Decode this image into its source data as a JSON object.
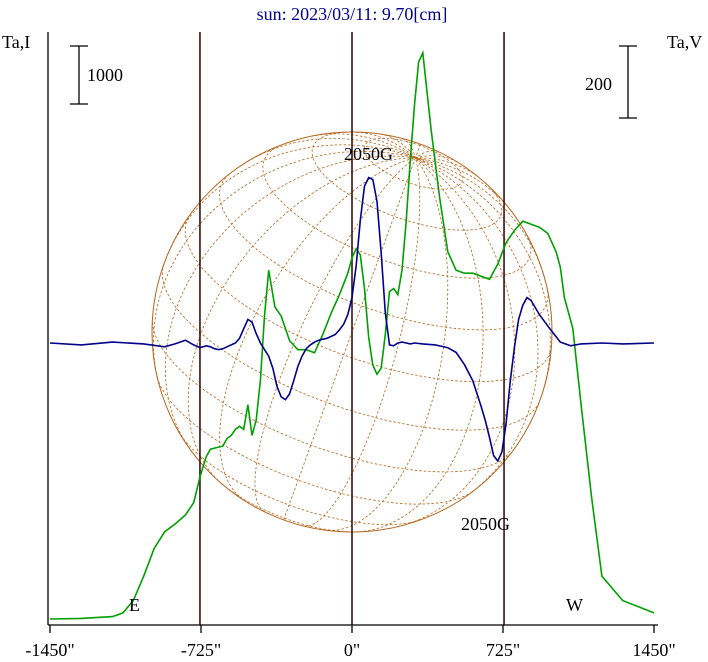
{
  "chart_data": {
    "type": "line",
    "title": "sun: 2023/03/11: 9.70[cm]",
    "left_axis_label": "Ta,I",
    "right_axis_label": "Ta,V",
    "left_scale_label": "1000",
    "right_scale_label": "200",
    "x_ticks": [
      {
        "value": -1450,
        "label": "-1450\""
      },
      {
        "value": -725,
        "label": "-725\""
      },
      {
        "value": 0,
        "label": "0\""
      },
      {
        "value": 725,
        "label": "725\""
      },
      {
        "value": 1450,
        "label": "1450\""
      }
    ],
    "xlim": [
      -1450,
      1450
    ],
    "limb_lines": [
      -730,
      0,
      730
    ],
    "east_label": "E",
    "west_label": "W",
    "annotations": [
      {
        "text": "2050G",
        "x": 90,
        "anchor": "above-peak"
      },
      {
        "text": "2050G",
        "x": 630,
        "anchor": "below-trough"
      }
    ],
    "colors": {
      "intensity": "#00a000",
      "polarization": "#00008b",
      "disk": "#b5651d",
      "limb_lines": "#3a1010",
      "title": "#00008b"
    },
    "series": [
      {
        "name": "Ta,I",
        "color": "#00a000",
        "x": [
          -1450,
          -1300,
          -1150,
          -1100,
          -1050,
          -1000,
          -950,
          -900,
          -850,
          -800,
          -760,
          -730,
          -700,
          -680,
          -650,
          -620,
          -600,
          -580,
          -560,
          -540,
          -520,
          -500,
          -480,
          -460,
          -440,
          -420,
          -400,
          -370,
          -340,
          -300,
          -260,
          -220,
          -180,
          -140,
          -100,
          -60,
          -20,
          0,
          20,
          40,
          60,
          80,
          100,
          120,
          140,
          160,
          180,
          200,
          220,
          240,
          260,
          280,
          300,
          320,
          340,
          380,
          420,
          460,
          500,
          540,
          580,
          620,
          660,
          700,
          740,
          780,
          820,
          860,
          900,
          940,
          980,
          1000,
          1020,
          1060,
          1100,
          1150,
          1200,
          1300,
          1450
        ],
        "values": [
          0,
          2,
          8,
          20,
          60,
          140,
          230,
          285,
          310,
          340,
          380,
          465,
          530,
          555,
          560,
          565,
          590,
          600,
          620,
          630,
          620,
          700,
          600,
          650,
          780,
          990,
          1140,
          1020,
          990,
          910,
          880,
          880,
          870,
          930,
          1000,
          1060,
          1130,
          1180,
          1210,
          1190,
          1080,
          920,
          830,
          800,
          820,
          930,
          1070,
          1080,
          1060,
          1140,
          1300,
          1500,
          1680,
          1820,
          1850,
          1600,
          1380,
          1200,
          1140,
          1130,
          1130,
          1120,
          1110,
          1160,
          1230,
          1270,
          1300,
          1290,
          1280,
          1260,
          1200,
          1150,
          1050,
          950,
          700,
          400,
          140,
          60,
          20
        ]
      },
      {
        "name": "Ta,V",
        "color": "#00008b",
        "x": [
          -1450,
          -1300,
          -1150,
          -1000,
          -900,
          -850,
          -800,
          -760,
          -730,
          -700,
          -680,
          -660,
          -640,
          -620,
          -600,
          -580,
          -560,
          -540,
          -520,
          -500,
          -480,
          -460,
          -440,
          -420,
          -400,
          -380,
          -360,
          -340,
          -320,
          -300,
          -280,
          -260,
          -240,
          -220,
          -200,
          -180,
          -160,
          -140,
          -120,
          -100,
          -80,
          -60,
          -40,
          -20,
          0,
          20,
          40,
          60,
          80,
          100,
          120,
          140,
          160,
          180,
          200,
          220,
          240,
          260,
          280,
          300,
          340,
          400,
          460,
          500,
          540,
          580,
          620,
          640,
          660,
          680,
          700,
          720,
          740,
          760,
          780,
          800,
          820,
          840,
          860,
          900,
          950,
          1000,
          1050,
          1100,
          1200,
          1300,
          1450
        ],
        "values": [
          0,
          -2,
          1,
          -1,
          -4,
          -1,
          3,
          -2,
          -5,
          -3,
          -4,
          -6,
          -7,
          -6,
          -4,
          -2,
          0,
          5,
          15,
          25,
          22,
          10,
          0,
          -7,
          -14,
          -27,
          -46,
          -57,
          -60,
          -54,
          -40,
          -25,
          -14,
          -6,
          -2,
          1,
          3,
          4,
          5,
          7,
          9,
          14,
          20,
          30,
          48,
          82,
          130,
          166,
          175,
          173,
          150,
          95,
          32,
          -2,
          -3,
          0,
          1,
          0,
          -1,
          0,
          -1,
          -2,
          -5,
          -10,
          -23,
          -40,
          -67,
          -82,
          -100,
          -119,
          -125,
          -115,
          -85,
          -40,
          -4,
          25,
          40,
          48,
          45,
          30,
          15,
          1,
          -3,
          -1,
          0,
          -1,
          0
        ]
      }
    ]
  }
}
